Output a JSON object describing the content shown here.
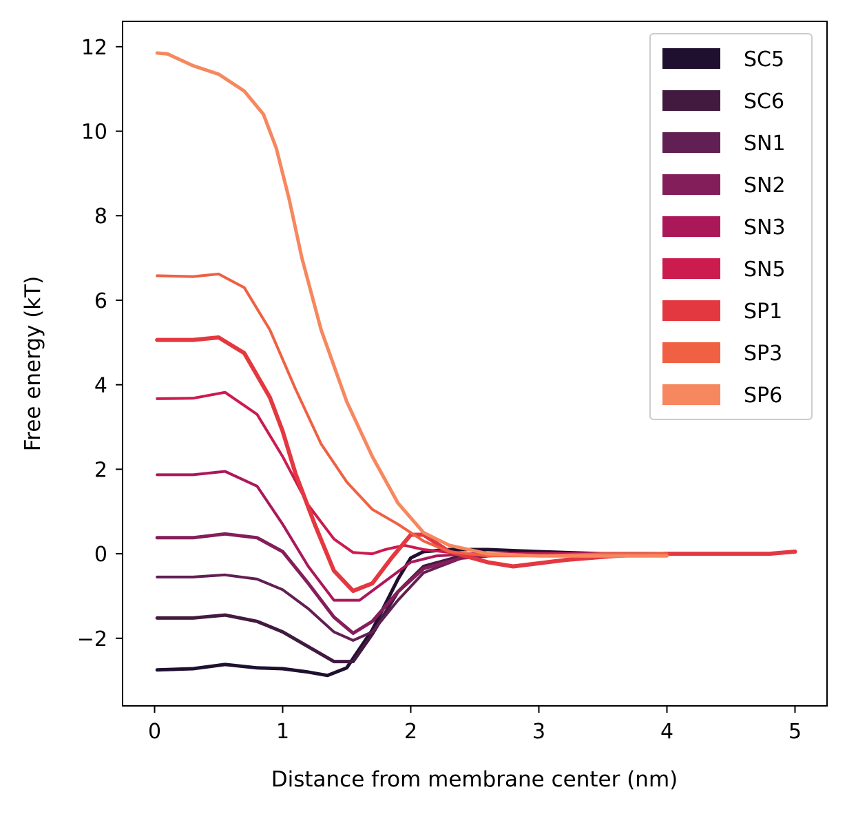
{
  "chart_data": {
    "type": "line",
    "title": "",
    "xlabel": "Distance from membrane center (nm)",
    "ylabel": "Free energy (kT)",
    "xlim": [
      -0.25,
      5.25
    ],
    "ylim": [
      -3.6,
      12.6
    ],
    "xticks": [
      0,
      1,
      2,
      3,
      4,
      5
    ],
    "xtick_labels": [
      "0",
      "1",
      "2",
      "3",
      "4",
      "5"
    ],
    "yticks": [
      -2,
      0,
      2,
      4,
      6,
      8,
      10,
      12
    ],
    "ytick_labels": [
      "−2",
      "0",
      "2",
      "4",
      "6",
      "8",
      "10",
      "12"
    ],
    "grid": false,
    "legend_position": "top-right",
    "series": [
      {
        "name": "SC5",
        "color": "#1f1030",
        "width": 5,
        "x": [
          0.02,
          0.3,
          0.55,
          0.8,
          1.0,
          1.2,
          1.35,
          1.5,
          1.7,
          1.9,
          2.0,
          2.1,
          2.3,
          2.6,
          3.0,
          3.5,
          4.0
        ],
        "y": [
          -2.75,
          -2.72,
          -2.62,
          -2.7,
          -2.72,
          -2.8,
          -2.88,
          -2.7,
          -1.8,
          -0.6,
          -0.1,
          0.05,
          0.1,
          0.1,
          0.05,
          0.0,
          0.0
        ]
      },
      {
        "name": "SC6",
        "color": "#421a40",
        "width": 5,
        "x": [
          0.02,
          0.3,
          0.55,
          0.8,
          1.0,
          1.2,
          1.4,
          1.55,
          1.7,
          1.9,
          2.1,
          2.4,
          2.8,
          3.5,
          4.0
        ],
        "y": [
          -1.52,
          -1.52,
          -1.45,
          -1.6,
          -1.85,
          -2.2,
          -2.55,
          -2.55,
          -1.9,
          -0.9,
          -0.3,
          -0.05,
          0.0,
          0.0,
          0.0
        ]
      },
      {
        "name": "SN1",
        "color": "#611f53",
        "width": 4,
        "x": [
          0.02,
          0.3,
          0.55,
          0.8,
          1.0,
          1.2,
          1.4,
          1.55,
          1.7,
          1.9,
          2.1,
          2.4,
          2.8,
          3.5,
          4.0
        ],
        "y": [
          -0.55,
          -0.55,
          -0.5,
          -0.6,
          -0.85,
          -1.3,
          -1.85,
          -2.05,
          -1.85,
          -1.1,
          -0.45,
          -0.1,
          0.0,
          0.0,
          0.0
        ]
      },
      {
        "name": "SN2",
        "color": "#841e5a",
        "width": 5,
        "x": [
          0.02,
          0.3,
          0.55,
          0.8,
          1.0,
          1.2,
          1.4,
          1.55,
          1.7,
          1.9,
          2.1,
          2.4,
          2.8,
          3.5,
          4.0
        ],
        "y": [
          0.38,
          0.38,
          0.47,
          0.38,
          0.05,
          -0.7,
          -1.5,
          -1.88,
          -1.6,
          -0.9,
          -0.35,
          -0.1,
          0.0,
          0.0,
          0.0
        ]
      },
      {
        "name": "SN3",
        "color": "#ab185a",
        "width": 4,
        "x": [
          0.02,
          0.3,
          0.55,
          0.8,
          1.0,
          1.2,
          1.4,
          1.6,
          1.8,
          2.0,
          2.2,
          2.5,
          3.0,
          3.5,
          4.0
        ],
        "y": [
          1.87,
          1.87,
          1.95,
          1.6,
          0.7,
          -0.3,
          -1.1,
          -1.1,
          -0.65,
          -0.2,
          -0.05,
          0.0,
          0.0,
          0.0,
          0.0
        ]
      },
      {
        "name": "SN5",
        "color": "#cb1b4f",
        "width": 4,
        "x": [
          0.02,
          0.3,
          0.55,
          0.8,
          1.0,
          1.2,
          1.4,
          1.55,
          1.7,
          1.8,
          1.95,
          2.1,
          2.4,
          2.8,
          3.5,
          4.0
        ],
        "y": [
          3.67,
          3.68,
          3.82,
          3.3,
          2.3,
          1.15,
          0.35,
          0.03,
          0.0,
          0.1,
          0.2,
          0.1,
          0.0,
          0.0,
          0.0,
          0.0
        ]
      },
      {
        "name": "SP1",
        "color": "#e43841",
        "width": 6,
        "x": [
          0.02,
          0.3,
          0.5,
          0.7,
          0.9,
          1.0,
          1.1,
          1.25,
          1.4,
          1.55,
          1.7,
          1.85,
          2.0,
          2.1,
          2.3,
          2.6,
          2.8,
          3.2,
          3.6,
          4.0,
          4.4,
          4.8,
          5.0
        ],
        "y": [
          5.06,
          5.06,
          5.12,
          4.75,
          3.7,
          2.9,
          1.9,
          0.7,
          -0.4,
          -0.88,
          -0.7,
          -0.1,
          0.45,
          0.45,
          0.05,
          -0.2,
          -0.3,
          -0.15,
          -0.05,
          0.0,
          0.0,
          0.0,
          0.05
        ]
      },
      {
        "name": "SP3",
        "color": "#f06043",
        "width": 4,
        "x": [
          0.02,
          0.3,
          0.5,
          0.7,
          0.9,
          1.1,
          1.3,
          1.5,
          1.7,
          1.9,
          2.1,
          2.3,
          2.6,
          3.0,
          3.5,
          4.0
        ],
        "y": [
          6.58,
          6.56,
          6.62,
          6.3,
          5.3,
          3.9,
          2.6,
          1.7,
          1.05,
          0.7,
          0.3,
          0.05,
          -0.05,
          -0.05,
          0.0,
          0.0
        ]
      },
      {
        "name": "SP6",
        "color": "#f6875f",
        "width": 5,
        "x": [
          0.02,
          0.1,
          0.3,
          0.5,
          0.7,
          0.85,
          0.95,
          1.05,
          1.15,
          1.3,
          1.5,
          1.7,
          1.9,
          2.1,
          2.3,
          2.6,
          3.0,
          3.5,
          4.0
        ],
        "y": [
          11.85,
          11.83,
          11.55,
          11.35,
          10.95,
          10.4,
          9.6,
          8.4,
          7.0,
          5.3,
          3.6,
          2.3,
          1.2,
          0.5,
          0.2,
          0.0,
          -0.05,
          -0.05,
          -0.05
        ]
      }
    ]
  }
}
